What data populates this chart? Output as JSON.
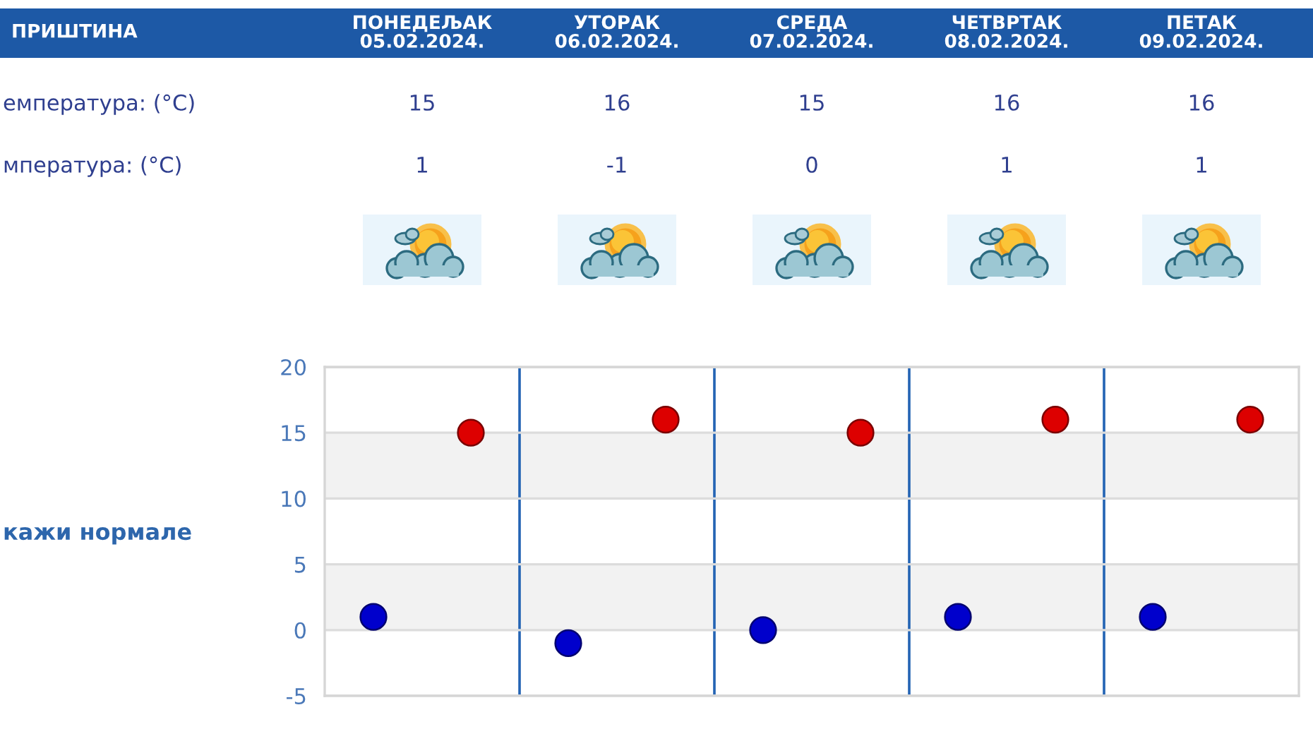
{
  "chart_data": [
    {
      "type": "other",
      "title": "ПРИШТИНА",
      "categories": [
        "ПОНЕДЕЉАК\n05.02.2024.",
        "УТОРАК\n06.02.2024.",
        "СРЕДА\n07.02.2024.",
        "ЧЕТВРТАК\n08.02.2024.",
        "ПЕТАК\n09.02.2024."
      ],
      "y_categories": [
        "емпература: (°C)",
        "мпература: (°C)"
      ],
      "cell_labels": [
        [
          "15",
          "16",
          "15",
          "16",
          "16"
        ],
        [
          "1",
          "-1",
          "0",
          "1",
          "1"
        ]
      ]
    },
    {
      "type": "scatter",
      "categories": [
        null,
        null,
        null,
        null,
        null
      ],
      "series": [
        {
          "color": "#0000cc",
          "values": [
            1,
            -1,
            0,
            1,
            1
          ]
        },
        {
          "color": "#dd0000",
          "values": [
            15,
            16,
            15,
            16,
            16
          ]
        }
      ],
      "ylim": [
        -5,
        20
      ],
      "yticks": [
        -5,
        0,
        5,
        10,
        15,
        20
      ],
      "grid": true,
      "bands": [
        {
          "axis": "y",
          "from": 0,
          "to": 5,
          "color": "#f2f2f2"
        },
        {
          "axis": "y",
          "from": 10,
          "to": 15,
          "color": "#f2f2f2"
        }
      ],
      "marker": "circle",
      "tick_labels": "y",
      "annotations": [
        "кажи нормале"
      ]
    }
  ]
}
